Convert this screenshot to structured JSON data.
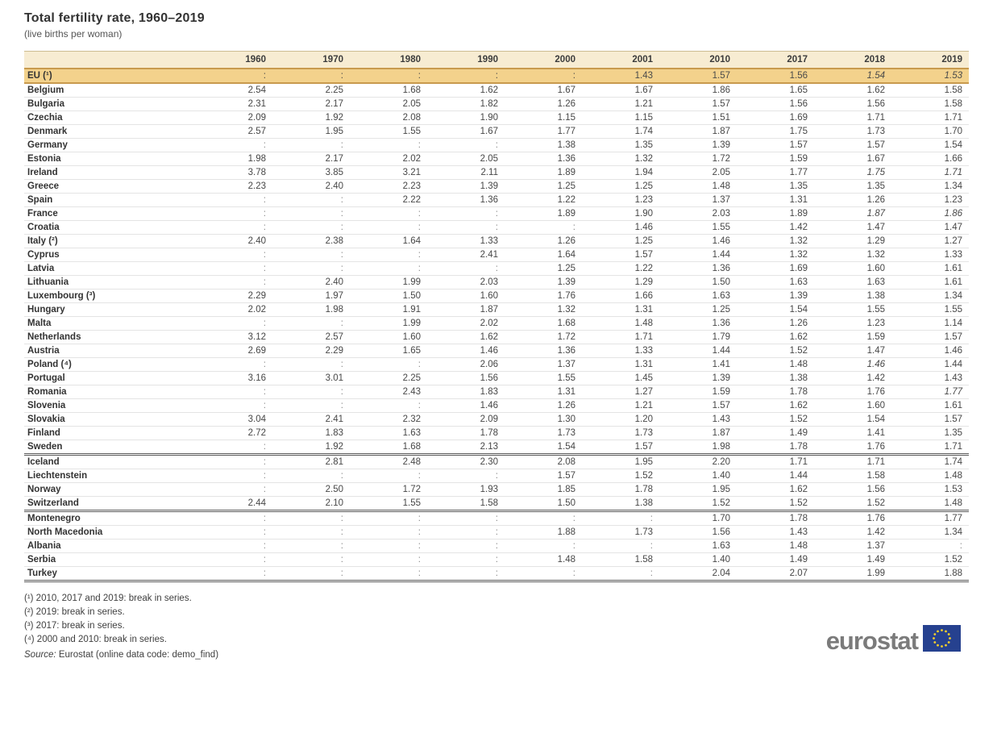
{
  "chart_data": {
    "type": "table",
    "title": "Total fertility rate, 1960–2019",
    "subtitle": "(live births per woman)",
    "missing_symbol": ":",
    "columns": [
      "1960",
      "1970",
      "1980",
      "1990",
      "2000",
      "2001",
      "2010",
      "2017",
      "2018",
      "2019"
    ],
    "rows": [
      {
        "label": "EU (¹)",
        "values": [
          ":",
          ":",
          ":",
          ":",
          ":",
          "1.43",
          "1.57",
          "1.56",
          "1.54",
          "1.53"
        ],
        "italics": [
          8,
          9
        ],
        "highlight": true
      },
      {
        "label": "Belgium",
        "values": [
          "2.54",
          "2.25",
          "1.68",
          "1.62",
          "1.67",
          "1.67",
          "1.86",
          "1.65",
          "1.62",
          "1.58"
        ]
      },
      {
        "label": "Bulgaria",
        "values": [
          "2.31",
          "2.17",
          "2.05",
          "1.82",
          "1.26",
          "1.21",
          "1.57",
          "1.56",
          "1.56",
          "1.58"
        ]
      },
      {
        "label": "Czechia",
        "values": [
          "2.09",
          "1.92",
          "2.08",
          "1.90",
          "1.15",
          "1.15",
          "1.51",
          "1.69",
          "1.71",
          "1.71"
        ]
      },
      {
        "label": "Denmark",
        "values": [
          "2.57",
          "1.95",
          "1.55",
          "1.67",
          "1.77",
          "1.74",
          "1.87",
          "1.75",
          "1.73",
          "1.70"
        ]
      },
      {
        "label": "Germany",
        "values": [
          ":",
          ":",
          ":",
          ":",
          "1.38",
          "1.35",
          "1.39",
          "1.57",
          "1.57",
          "1.54"
        ]
      },
      {
        "label": "Estonia",
        "values": [
          "1.98",
          "2.17",
          "2.02",
          "2.05",
          "1.36",
          "1.32",
          "1.72",
          "1.59",
          "1.67",
          "1.66"
        ]
      },
      {
        "label": "Ireland",
        "values": [
          "3.78",
          "3.85",
          "3.21",
          "2.11",
          "1.89",
          "1.94",
          "2.05",
          "1.77",
          "1.75",
          "1.71"
        ],
        "italics": [
          8,
          9
        ]
      },
      {
        "label": "Greece",
        "values": [
          "2.23",
          "2.40",
          "2.23",
          "1.39",
          "1.25",
          "1.25",
          "1.48",
          "1.35",
          "1.35",
          "1.34"
        ]
      },
      {
        "label": "Spain",
        "values": [
          ":",
          ":",
          "2.22",
          "1.36",
          "1.22",
          "1.23",
          "1.37",
          "1.31",
          "1.26",
          "1.23"
        ]
      },
      {
        "label": "France",
        "values": [
          ":",
          ":",
          ":",
          ":",
          "1.89",
          "1.90",
          "2.03",
          "1.89",
          "1.87",
          "1.86"
        ],
        "italics": [
          8,
          9
        ]
      },
      {
        "label": "Croatia",
        "values": [
          ":",
          ":",
          ":",
          ":",
          ":",
          "1.46",
          "1.55",
          "1.42",
          "1.47",
          "1.47"
        ]
      },
      {
        "label": "Italy (²)",
        "values": [
          "2.40",
          "2.38",
          "1.64",
          "1.33",
          "1.26",
          "1.25",
          "1.46",
          "1.32",
          "1.29",
          "1.27"
        ]
      },
      {
        "label": "Cyprus",
        "values": [
          ":",
          ":",
          ":",
          "2.41",
          "1.64",
          "1.57",
          "1.44",
          "1.32",
          "1.32",
          "1.33"
        ]
      },
      {
        "label": "Latvia",
        "values": [
          ":",
          ":",
          ":",
          ":",
          "1.25",
          "1.22",
          "1.36",
          "1.69",
          "1.60",
          "1.61"
        ]
      },
      {
        "label": "Lithuania",
        "values": [
          ":",
          "2.40",
          "1.99",
          "2.03",
          "1.39",
          "1.29",
          "1.50",
          "1.63",
          "1.63",
          "1.61"
        ]
      },
      {
        "label": "Luxembourg (³)",
        "values": [
          "2.29",
          "1.97",
          "1.50",
          "1.60",
          "1.76",
          "1.66",
          "1.63",
          "1.39",
          "1.38",
          "1.34"
        ]
      },
      {
        "label": "Hungary",
        "values": [
          "2.02",
          "1.98",
          "1.91",
          "1.87",
          "1.32",
          "1.31",
          "1.25",
          "1.54",
          "1.55",
          "1.55"
        ]
      },
      {
        "label": "Malta",
        "values": [
          ":",
          ":",
          "1.99",
          "2.02",
          "1.68",
          "1.48",
          "1.36",
          "1.26",
          "1.23",
          "1.14"
        ]
      },
      {
        "label": "Netherlands",
        "values": [
          "3.12",
          "2.57",
          "1.60",
          "1.62",
          "1.72",
          "1.71",
          "1.79",
          "1.62",
          "1.59",
          "1.57"
        ]
      },
      {
        "label": "Austria",
        "values": [
          "2.69",
          "2.29",
          "1.65",
          "1.46",
          "1.36",
          "1.33",
          "1.44",
          "1.52",
          "1.47",
          "1.46"
        ]
      },
      {
        "label": "Poland (⁴)",
        "values": [
          ":",
          ":",
          ":",
          "2.06",
          "1.37",
          "1.31",
          "1.41",
          "1.48",
          "1.46",
          "1.44"
        ],
        "italics": [
          8
        ]
      },
      {
        "label": "Portugal",
        "values": [
          "3.16",
          "3.01",
          "2.25",
          "1.56",
          "1.55",
          "1.45",
          "1.39",
          "1.38",
          "1.42",
          "1.43"
        ]
      },
      {
        "label": "Romania",
        "values": [
          ":",
          ":",
          "2.43",
          "1.83",
          "1.31",
          "1.27",
          "1.59",
          "1.78",
          "1.76",
          "1.77"
        ],
        "italics": [
          9
        ]
      },
      {
        "label": "Slovenia",
        "values": [
          ":",
          ":",
          ":",
          "1.46",
          "1.26",
          "1.21",
          "1.57",
          "1.62",
          "1.60",
          "1.61"
        ]
      },
      {
        "label": "Slovakia",
        "values": [
          "3.04",
          "2.41",
          "2.32",
          "2.09",
          "1.30",
          "1.20",
          "1.43",
          "1.52",
          "1.54",
          "1.57"
        ]
      },
      {
        "label": "Finland",
        "values": [
          "2.72",
          "1.83",
          "1.63",
          "1.78",
          "1.73",
          "1.73",
          "1.87",
          "1.49",
          "1.41",
          "1.35"
        ]
      },
      {
        "label": "Sweden",
        "values": [
          ":",
          "1.92",
          "1.68",
          "2.13",
          "1.54",
          "1.57",
          "1.98",
          "1.78",
          "1.76",
          "1.71"
        ],
        "sep_after": true
      },
      {
        "label": "Iceland",
        "values": [
          ":",
          "2.81",
          "2.48",
          "2.30",
          "2.08",
          "1.95",
          "2.20",
          "1.71",
          "1.71",
          "1.74"
        ]
      },
      {
        "label": "Liechtenstein",
        "values": [
          ":",
          ":",
          ":",
          ":",
          "1.57",
          "1.52",
          "1.40",
          "1.44",
          "1.58",
          "1.48"
        ]
      },
      {
        "label": "Norway",
        "values": [
          ":",
          "2.50",
          "1.72",
          "1.93",
          "1.85",
          "1.78",
          "1.95",
          "1.62",
          "1.56",
          "1.53"
        ]
      },
      {
        "label": "Switzerland",
        "values": [
          "2.44",
          "2.10",
          "1.55",
          "1.58",
          "1.50",
          "1.38",
          "1.52",
          "1.52",
          "1.52",
          "1.48"
        ],
        "sep_after": true
      },
      {
        "label": "Montenegro",
        "values": [
          ":",
          ":",
          ":",
          ":",
          ":",
          ":",
          "1.70",
          "1.78",
          "1.76",
          "1.77"
        ]
      },
      {
        "label": "North Macedonia",
        "values": [
          ":",
          ":",
          ":",
          ":",
          "1.88",
          "1.73",
          "1.56",
          "1.43",
          "1.42",
          "1.34"
        ]
      },
      {
        "label": "Albania",
        "values": [
          ":",
          ":",
          ":",
          ":",
          ":",
          ":",
          "1.63",
          "1.48",
          "1.37",
          ":"
        ]
      },
      {
        "label": "Serbia",
        "values": [
          ":",
          ":",
          ":",
          ":",
          "1.48",
          "1.58",
          "1.40",
          "1.49",
          "1.49",
          "1.52"
        ]
      },
      {
        "label": "Turkey",
        "values": [
          ":",
          ":",
          ":",
          ":",
          ":",
          ":",
          "2.04",
          "2.07",
          "1.99",
          "1.88"
        ]
      }
    ]
  },
  "footnotes": [
    "(¹) 2010, 2017 and 2019: break in series.",
    "(²) 2019: break in series.",
    "(³) 2017: break in series.",
    "(⁴) 2000 and 2010: break in series."
  ],
  "source": {
    "label": "Source:",
    "text": "Eurostat (online data code: demo_find)"
  },
  "logo": {
    "text": "eurostat",
    "flag_bg": "#26418f",
    "star_color": "#f8d12a"
  },
  "colors": {
    "header_bg": "#f7ecd2",
    "eu_row_bg": "#f3d28c",
    "eu_row_border": "#c89a4e",
    "row_divider": "#e4e4e4",
    "group_separator": "#5a5a5a"
  }
}
